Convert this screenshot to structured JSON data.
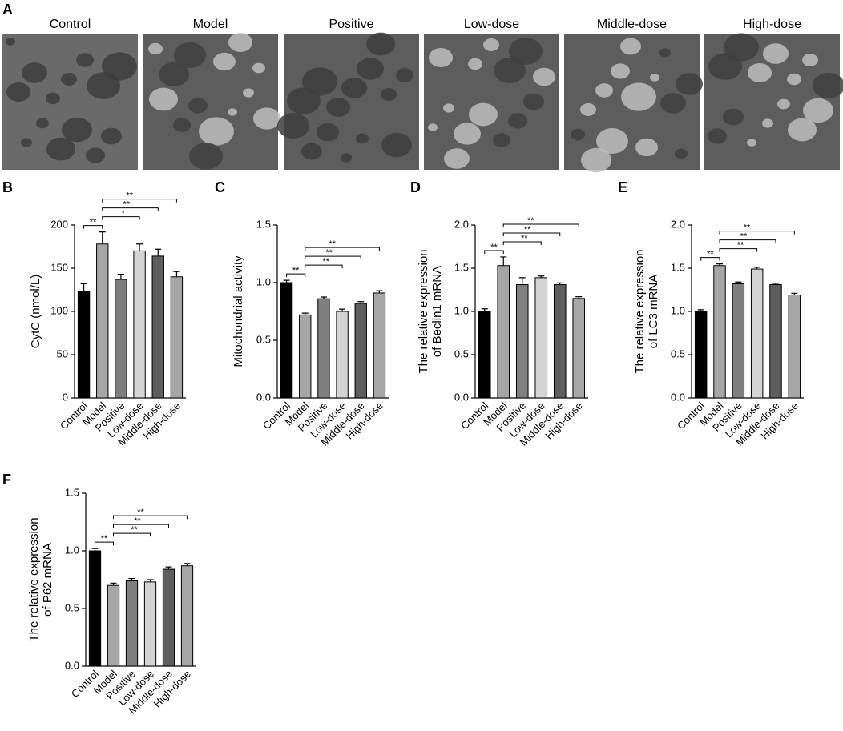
{
  "images": {
    "panel": "A",
    "labels": [
      "Control",
      "Model",
      "Positive",
      "Low-dose",
      "Middle-dose",
      "High-dose"
    ]
  },
  "chart_data": [
    {
      "type": "bar",
      "panel": "B",
      "ylabel": [
        "CytC (nmol/L)"
      ],
      "categories": [
        "Control",
        "Model",
        "Positive",
        "Low-dose",
        "Middle-dose",
        "High-dose"
      ],
      "values": [
        123,
        178,
        137,
        170,
        164,
        140
      ],
      "errors": [
        9,
        14,
        6,
        8,
        8,
        6
      ],
      "colors": [
        "#000000",
        "#a6a6a6",
        "#7f7f7f",
        "#d4d4d4",
        "#5e5e5e",
        "#a6a6a6"
      ],
      "ylim": [
        0,
        200
      ],
      "yticks": [
        0,
        50,
        100,
        150,
        200
      ],
      "brackets": [
        {
          "from": 0,
          "to": 1,
          "label": "**"
        },
        {
          "from": 1,
          "to": 3,
          "label": "*"
        },
        {
          "from": 1,
          "to": 4,
          "label": "**"
        },
        {
          "from": 1,
          "to": 5,
          "label": "**"
        }
      ]
    },
    {
      "type": "bar",
      "panel": "C",
      "ylabel": [
        "Mitochondrial activity"
      ],
      "categories": [
        "Control",
        "Model",
        "Positive",
        "Low-dose",
        "Middle-dose",
        "High-dose"
      ],
      "values": [
        1.0,
        0.72,
        0.86,
        0.75,
        0.82,
        0.91
      ],
      "errors": [
        0.02,
        0.015,
        0.015,
        0.02,
        0.015,
        0.02
      ],
      "colors": [
        "#000000",
        "#a6a6a6",
        "#7f7f7f",
        "#d4d4d4",
        "#5e5e5e",
        "#a6a6a6"
      ],
      "ylim": [
        0,
        1.5
      ],
      "yticks": [
        {
          "value": 0,
          "label": "0.0"
        },
        0.5,
        {
          "value": 1,
          "label": "1.0"
        },
        1.5
      ],
      "brackets": [
        {
          "from": 0,
          "to": 1,
          "label": "**"
        },
        {
          "from": 1,
          "to": 3,
          "label": "**"
        },
        {
          "from": 1,
          "to": 4,
          "label": "**"
        },
        {
          "from": 1,
          "to": 5,
          "label": "**"
        }
      ]
    },
    {
      "type": "bar",
      "panel": "D",
      "ylabel": [
        "The relative expression",
        "of Beclin1 mRNA"
      ],
      "categories": [
        "Control",
        "Model",
        "Positive",
        "Low-dose",
        "Middle-dose",
        "High-dose"
      ],
      "values": [
        1.0,
        1.53,
        1.31,
        1.39,
        1.31,
        1.15
      ],
      "errors": [
        0.03,
        0.1,
        0.08,
        0.02,
        0.02,
        0.02
      ],
      "colors": [
        "#000000",
        "#a6a6a6",
        "#7f7f7f",
        "#d4d4d4",
        "#5e5e5e",
        "#a6a6a6"
      ],
      "ylim": [
        0,
        2
      ],
      "yticks": [
        {
          "value": 0,
          "label": "0.0"
        },
        0.5,
        {
          "value": 1,
          "label": "1.0"
        },
        1.5,
        {
          "value": 2,
          "label": "2.0"
        }
      ],
      "brackets": [
        {
          "from": 0,
          "to": 1,
          "label": "**"
        },
        {
          "from": 1,
          "to": 3,
          "label": "**"
        },
        {
          "from": 1,
          "to": 4,
          "label": "**"
        },
        {
          "from": 1,
          "to": 5,
          "label": "**"
        }
      ]
    },
    {
      "type": "bar",
      "panel": "E",
      "ylabel": [
        "The relative expression",
        "of LC3 mRNA"
      ],
      "categories": [
        "Control",
        "Model",
        "Positive",
        "Low-dose",
        "Middle-dose",
        "High-dose"
      ],
      "values": [
        1.0,
        1.53,
        1.32,
        1.49,
        1.31,
        1.19
      ],
      "errors": [
        0.02,
        0.02,
        0.02,
        0.02,
        0.015,
        0.02
      ],
      "colors": [
        "#000000",
        "#a6a6a6",
        "#7f7f7f",
        "#d4d4d4",
        "#5e5e5e",
        "#a6a6a6"
      ],
      "ylim": [
        0,
        2
      ],
      "yticks": [
        {
          "value": 0,
          "label": "0.0"
        },
        0.5,
        {
          "value": 1,
          "label": "1.0"
        },
        1.5,
        {
          "value": 2,
          "label": "2.0"
        }
      ],
      "brackets": [
        {
          "from": 0,
          "to": 1,
          "label": "**"
        },
        {
          "from": 1,
          "to": 3,
          "label": "**"
        },
        {
          "from": 1,
          "to": 4,
          "label": "**"
        },
        {
          "from": 1,
          "to": 5,
          "label": "**"
        }
      ]
    },
    {
      "type": "bar",
      "panel": "F",
      "ylabel": [
        "The relative expression",
        "of P62 mRNA"
      ],
      "categories": [
        "Control",
        "Model",
        "Positive",
        "Low-dose",
        "Middle-dose",
        "High-dose"
      ],
      "values": [
        1.0,
        0.7,
        0.74,
        0.73,
        0.84,
        0.87
      ],
      "errors": [
        0.02,
        0.02,
        0.02,
        0.02,
        0.02,
        0.02
      ],
      "colors": [
        "#000000",
        "#a6a6a6",
        "#7f7f7f",
        "#d4d4d4",
        "#5e5e5e",
        "#a6a6a6"
      ],
      "ylim": [
        0,
        1.5
      ],
      "yticks": [
        {
          "value": 0,
          "label": "0.0"
        },
        0.5,
        {
          "value": 1,
          "label": "1.0"
        },
        1.5
      ],
      "brackets": [
        {
          "from": 0,
          "to": 1,
          "label": "**"
        },
        {
          "from": 1,
          "to": 3,
          "label": "**"
        },
        {
          "from": 1,
          "to": 4,
          "label": "**"
        },
        {
          "from": 1,
          "to": 5,
          "label": "**"
        }
      ]
    }
  ]
}
